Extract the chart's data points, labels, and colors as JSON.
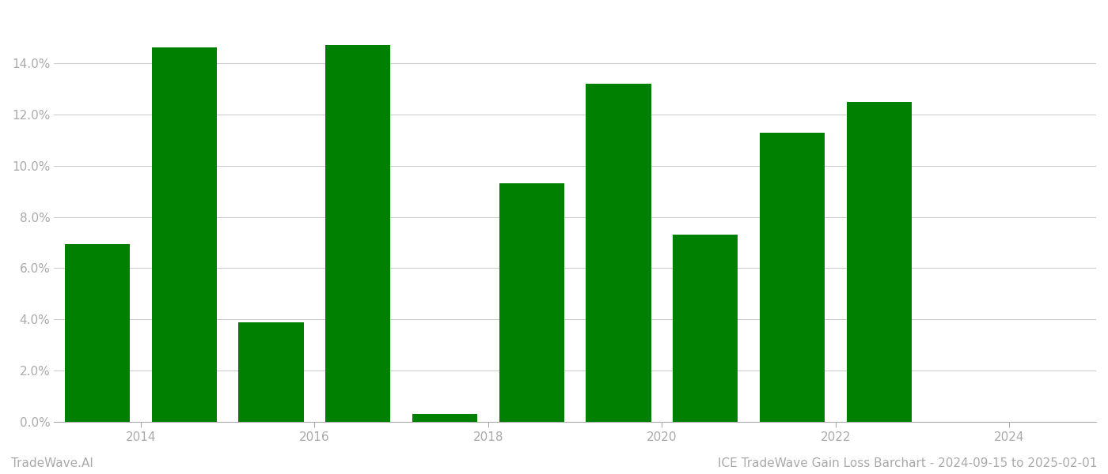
{
  "years": [
    2013,
    2014,
    2015,
    2016,
    2017,
    2018,
    2019,
    2020,
    2021,
    2022
  ],
  "values": [
    0.0695,
    0.146,
    0.039,
    0.147,
    0.003,
    0.093,
    0.132,
    0.073,
    0.113,
    0.125
  ],
  "bar_color": "#008000",
  "background_color": "#ffffff",
  "grid_color": "#cccccc",
  "axis_color": "#aaaaaa",
  "tick_label_color": "#aaaaaa",
  "ylim": [
    0,
    0.16
  ],
  "yticks": [
    0.0,
    0.02,
    0.04,
    0.06,
    0.08,
    0.1,
    0.12,
    0.14
  ],
  "xticks": [
    2013.5,
    2015.5,
    2017.5,
    2019.5,
    2021.5,
    2023.5
  ],
  "xtick_labels": [
    "2014",
    "2016",
    "2018",
    "2020",
    "2022",
    "2024"
  ],
  "xlim": [
    2012.5,
    2024.5
  ],
  "bar_width": 0.75,
  "footer_left": "TradeWave.AI",
  "footer_right": "ICE TradeWave Gain Loss Barchart - 2024-09-15 to 2025-02-01",
  "footer_color": "#aaaaaa",
  "footer_fontsize": 11
}
